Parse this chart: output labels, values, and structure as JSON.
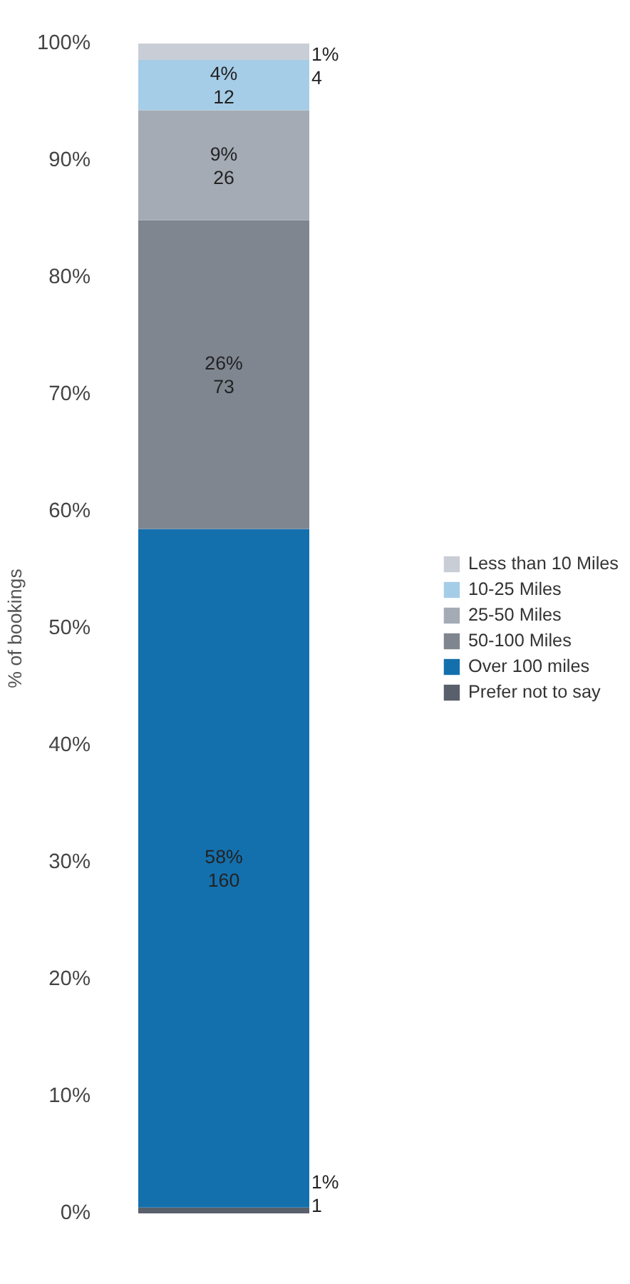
{
  "chart_data": {
    "type": "bar",
    "stacked": true,
    "ylabel": "% of bookings",
    "categories": [
      null
    ],
    "ylim": [
      0,
      100
    ],
    "yticks": [
      {
        "value": 0,
        "label": "0%"
      },
      {
        "value": 10,
        "label": "10%"
      },
      {
        "value": 20,
        "label": "20%"
      },
      {
        "value": 30,
        "label": "30%"
      },
      {
        "value": 40,
        "label": "40%"
      },
      {
        "value": 50,
        "label": "50%"
      },
      {
        "value": 60,
        "label": "60%"
      },
      {
        "value": 70,
        "label": "70%"
      },
      {
        "value": 80,
        "label": "80%"
      },
      {
        "value": 90,
        "label": "90%"
      },
      {
        "value": 100,
        "label": "100%"
      }
    ],
    "grid": false,
    "legend": "right",
    "series": [
      {
        "name": "Prefer not to say",
        "color": "#59606b",
        "values": [
          0.5
        ],
        "value_labels": [
          "1%\n1"
        ]
      },
      {
        "name": "Over 100 miles",
        "color": "#1470ad",
        "values": [
          58.0
        ],
        "value_labels": [
          "58%\n160"
        ]
      },
      {
        "name": "50-100 Miles",
        "color": "#7f8690",
        "values": [
          26.4
        ],
        "value_labels": [
          "26%\n73"
        ]
      },
      {
        "name": "25-50 Miles",
        "color": "#a5abb5",
        "values": [
          9.4
        ],
        "value_labels": [
          "9%\n26"
        ]
      },
      {
        "name": "10-25 Miles",
        "color": "#a6cde8",
        "values": [
          4.3
        ],
        "value_labels": [
          "4%\n12"
        ]
      },
      {
        "name": "Less than 10 Miles",
        "color": "#c9ced6",
        "values": [
          1.4
        ],
        "value_labels": [
          "1%\n4"
        ]
      }
    ]
  }
}
